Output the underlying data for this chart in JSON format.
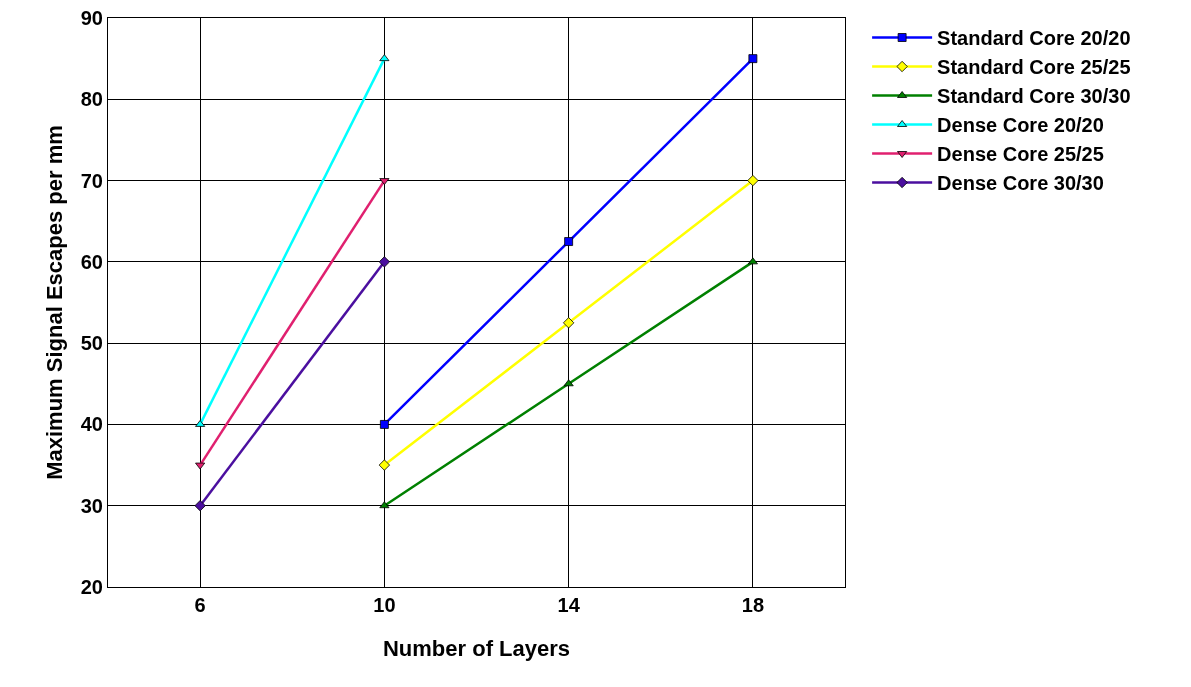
{
  "chart_data": {
    "type": "line",
    "xlabel": "Number of Layers",
    "ylabel": "Maximum Signal Escapes per mm",
    "xlim": [
      4,
      20
    ],
    "xticks": [
      6,
      10,
      14,
      18
    ],
    "ylim": [
      20,
      90
    ],
    "yticks": [
      20,
      30,
      40,
      50,
      60,
      70,
      80,
      90
    ],
    "grid": true,
    "legend": "right",
    "line_style": "solid",
    "series": [
      {
        "name": "Standard Core 20/20",
        "color": "#0000ff",
        "marker": "square",
        "x": [
          10,
          14,
          18
        ],
        "values": [
          40,
          62.5,
          85
        ]
      },
      {
        "name": "Standard Core 25/25",
        "color": "#ffff00",
        "marker": "diamond",
        "x": [
          10,
          14,
          18
        ],
        "values": [
          35,
          52.5,
          70
        ]
      },
      {
        "name": "Standard Core 30/30",
        "color": "#008000",
        "marker": "triangle",
        "x": [
          10,
          14,
          18
        ],
        "values": [
          30,
          45,
          60
        ]
      },
      {
        "name": "Dense Core 20/20",
        "color": "#00ffff",
        "marker": "triangle",
        "x": [
          6,
          10
        ],
        "values": [
          40,
          85
        ]
      },
      {
        "name": "Dense Core 25/25",
        "color": "#e0206f",
        "marker": "triangle-down",
        "x": [
          6,
          10
        ],
        "values": [
          35,
          70
        ]
      },
      {
        "name": "Dense Core 30/30",
        "color": "#4b0f9f",
        "marker": "diamond",
        "x": [
          6,
          10
        ],
        "values": [
          30,
          60
        ]
      }
    ]
  }
}
